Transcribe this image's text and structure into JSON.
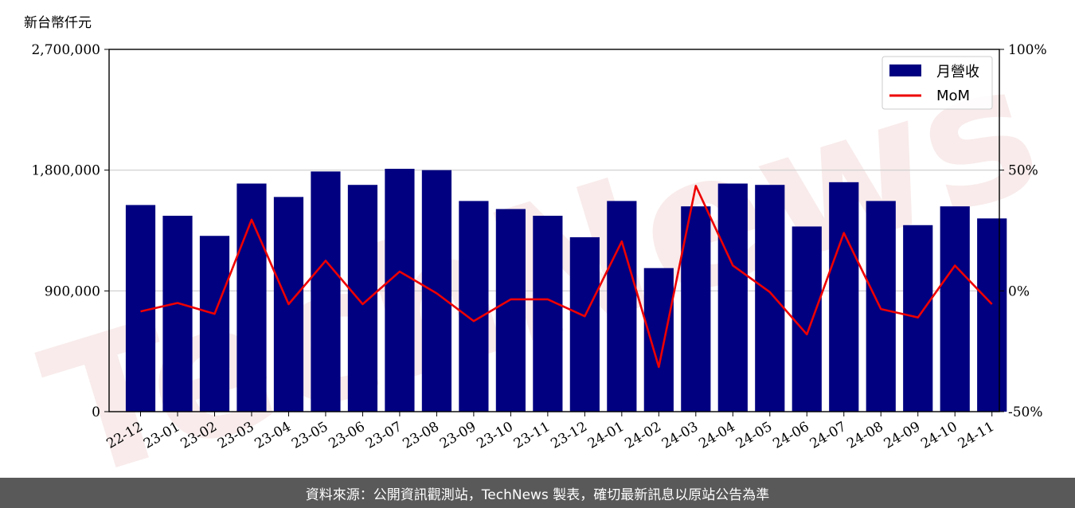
{
  "chart_data": {
    "type": "bar+line",
    "y_unit": "新台幣仟元",
    "categories": [
      "22-12",
      "23-01",
      "23-02",
      "23-03",
      "23-04",
      "23-05",
      "23-06",
      "23-07",
      "23-08",
      "23-09",
      "23-10",
      "23-11",
      "23-12",
      "24-01",
      "24-02",
      "24-03",
      "24-04",
      "24-05",
      "24-06",
      "24-07",
      "24-08",
      "24-09",
      "24-10",
      "24-11"
    ],
    "series": [
      {
        "name": "月營收",
        "type": "bar",
        "axis": "left",
        "color": "#000080",
        "values": [
          1540000,
          1460000,
          1310000,
          1700000,
          1600000,
          1790000,
          1690000,
          1810000,
          1800000,
          1570000,
          1510000,
          1460000,
          1300000,
          1570000,
          1070000,
          1530000,
          1700000,
          1690000,
          1380000,
          1710000,
          1570000,
          1390000,
          1530000,
          1440000
        ]
      },
      {
        "name": "MoM",
        "type": "line",
        "axis": "right",
        "color": "#ee0000",
        "values": [
          -8.5,
          -5,
          -9.5,
          29.5,
          -5.5,
          12.5,
          -5.5,
          8,
          -1,
          -12.5,
          -3.5,
          -3.5,
          -10.5,
          20.5,
          -31.5,
          43.5,
          10.5,
          -0.5,
          -18,
          24,
          -7.5,
          -11,
          10.5,
          -5.5
        ]
      }
    ],
    "y_left": {
      "min": 0,
      "max": 2700000,
      "ticks": [
        "0",
        "900,000",
        "1,800,000",
        "2,700,000"
      ]
    },
    "y_right": {
      "min": -50,
      "max": 100,
      "ticks": [
        "-50%",
        "0%",
        "50%",
        "100%"
      ]
    },
    "grid": "horizontal",
    "legend": "top-right"
  },
  "watermark": "TechNews",
  "footer": {
    "source": "資料來源：公開資訊觀測站，TechNews 製表，確切最新訊息以原站公告為準"
  }
}
